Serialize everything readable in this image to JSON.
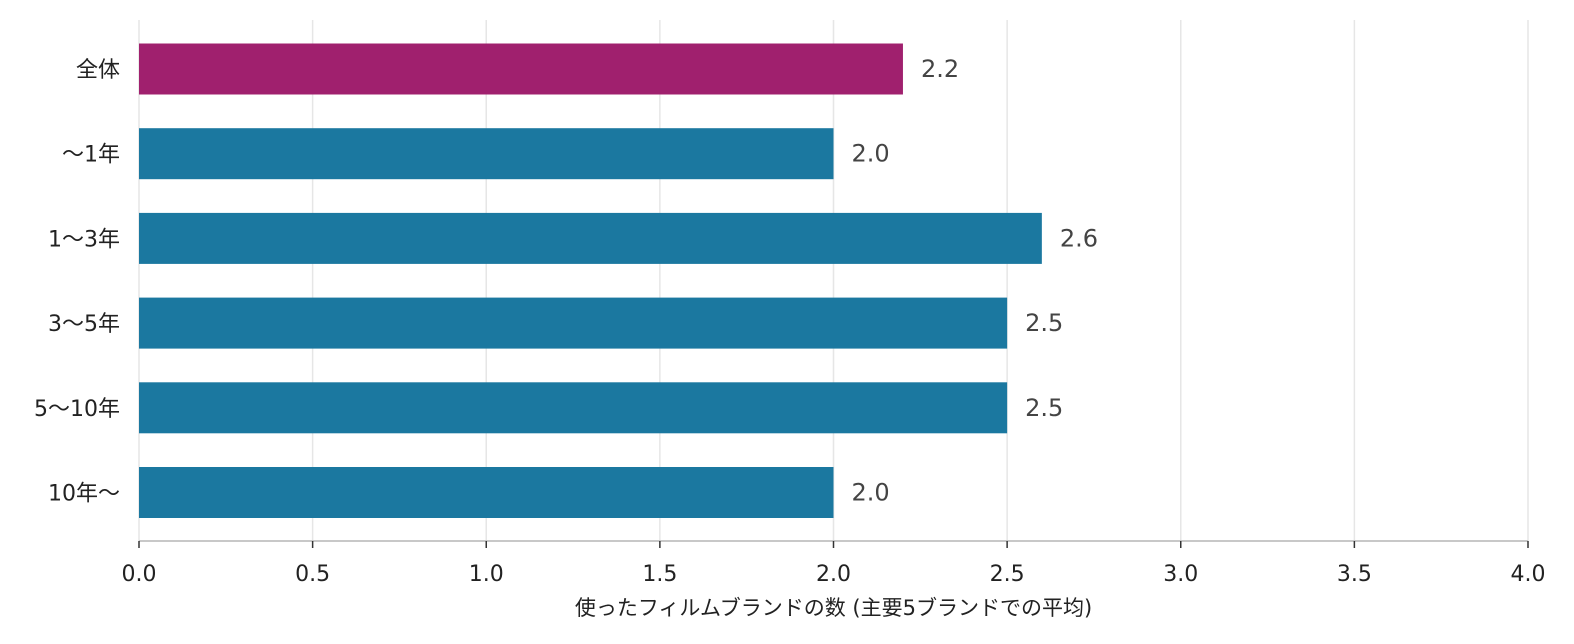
{
  "chart_data": {
    "type": "bar",
    "orientation": "horizontal",
    "categories": [
      "全体",
      "〜1年",
      "1〜3年",
      "3〜5年",
      "5〜10年",
      "10年〜"
    ],
    "values": [
      2.2,
      2.0,
      2.6,
      2.5,
      2.5,
      2.0
    ],
    "value_labels": [
      "2.2",
      "2.0",
      "2.6",
      "2.5",
      "2.5",
      "2.0"
    ],
    "bar_colors": [
      "#a0206e",
      "#1b78a0",
      "#1b78a0",
      "#1b78a0",
      "#1b78a0",
      "#1b78a0"
    ],
    "xlabel": "使ったフィルムブランドの数 (主要5ブランドでの平均)",
    "xlim": [
      0,
      4.0
    ],
    "xticks": [
      0,
      0.5,
      1.0,
      1.5,
      2.0,
      2.5,
      3.0,
      3.5,
      4.0
    ],
    "xtick_labels": [
      "0.0",
      "0.5",
      "1.0",
      "1.5",
      "2.0",
      "2.5",
      "3.0",
      "3.5",
      "4.0"
    ],
    "grid": "vertical",
    "legend": "none"
  }
}
